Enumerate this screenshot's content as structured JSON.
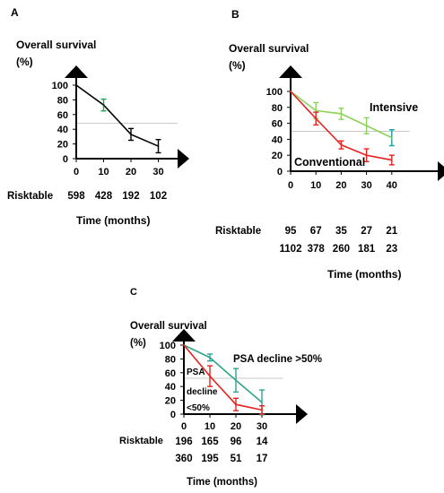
{
  "chart_data": [
    {
      "panel": "A",
      "type": "line",
      "ylabel": "Overall survival",
      "ylabel_unit": "(%)",
      "xlabel": "Time (months)",
      "xticks": [
        0,
        10,
        20,
        30
      ],
      "yticks": [
        0,
        20,
        40,
        60,
        80,
        100
      ],
      "xlim": [
        0,
        37
      ],
      "ylim": [
        0,
        100
      ],
      "reference_line": 48,
      "series": [
        {
          "color": "#000000",
          "points": [
            {
              "x": 0,
              "y": 100
            },
            {
              "x": 10,
              "y": 73,
              "err": 8,
              "err_color": "#1aa84b"
            },
            {
              "x": 20,
              "y": 33,
              "err": 8
            },
            {
              "x": 30,
              "y": 17,
              "err": 9
            }
          ]
        }
      ],
      "risktable_label": "Risktable",
      "risktable": [
        [
          "598",
          "428",
          "192",
          "102"
        ]
      ]
    },
    {
      "panel": "B",
      "type": "line",
      "ylabel": "Overall survival",
      "ylabel_unit": "(%)",
      "xlabel": "Time (months)",
      "xticks": [
        0,
        10,
        20,
        30,
        40
      ],
      "yticks": [
        0,
        10,
        20,
        30,
        40,
        50,
        60,
        70,
        80,
        90,
        100
      ],
      "xlim": [
        0,
        47
      ],
      "ylim": [
        0,
        100
      ],
      "reference_line": 50,
      "series": [
        {
          "name": "Intensive",
          "color": "#8cd25a",
          "points": [
            {
              "x": 0,
              "y": 100
            },
            {
              "x": 10,
              "y": 76,
              "err": 10
            },
            {
              "x": 20,
              "y": 72,
              "err": 7
            },
            {
              "x": 30,
              "y": 57,
              "err": 10
            },
            {
              "x": 40,
              "y": 42,
              "err": 10,
              "err_color": "#1a9e9e"
            }
          ]
        },
        {
          "name": "Conventional",
          "color": "#e8211e",
          "points": [
            {
              "x": 0,
              "y": 100
            },
            {
              "x": 10,
              "y": 66,
              "err": 8
            },
            {
              "x": 20,
              "y": 33,
              "err": 5
            },
            {
              "x": 30,
              "y": 20,
              "err": 8
            },
            {
              "x": 40,
              "y": 14,
              "err": 6
            }
          ]
        }
      ],
      "risktable_label": "Risktable",
      "risktable": [
        [
          "95",
          "67",
          "35",
          "27",
          "21"
        ],
        [
          "1102",
          "378",
          "260",
          "181",
          "23"
        ]
      ]
    },
    {
      "panel": "C",
      "type": "line",
      "ylabel": "Overall survival",
      "ylabel_unit": "(%)",
      "xlabel": "Time (months)",
      "xticks": [
        0,
        10,
        20,
        30
      ],
      "yticks": [
        0,
        20,
        40,
        60,
        80,
        100
      ],
      "xlim": [
        0,
        38
      ],
      "ylim": [
        0,
        100
      ],
      "reference_line": 52,
      "series": [
        {
          "name": "PSA decline >50%",
          "color": "#2fa58c",
          "points": [
            {
              "x": 0,
              "y": 100
            },
            {
              "x": 10,
              "y": 82,
              "err": 5
            },
            {
              "x": 20,
              "y": 49,
              "err": 17
            },
            {
              "x": 30,
              "y": 17,
              "err": 18
            }
          ]
        },
        {
          "name": "PSA decline <50%",
          "color": "#e8211e",
          "points": [
            {
              "x": 0,
              "y": 100
            },
            {
              "x": 10,
              "y": 55,
              "err": 15
            },
            {
              "x": 20,
              "y": 14,
              "err": 9
            },
            {
              "x": 30,
              "y": 6,
              "err": 6
            }
          ]
        }
      ],
      "risktable_label": "Risktable",
      "risktable": [
        [
          "196",
          "165",
          "96",
          "14"
        ],
        [
          "360",
          "195",
          "51",
          "17"
        ]
      ]
    }
  ]
}
